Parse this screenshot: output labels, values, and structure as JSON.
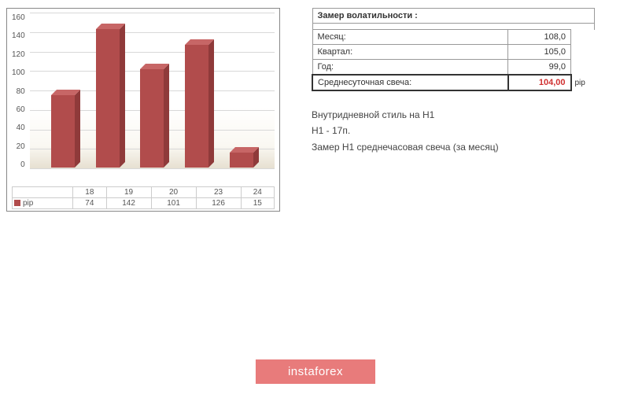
{
  "chart": {
    "type": "bar",
    "categories": [
      "18",
      "19",
      "20",
      "23",
      "24"
    ],
    "series_label": "pip",
    "values": [
      74,
      142,
      101,
      126,
      15
    ],
    "bar_color": "#b14c4c",
    "bar_side_color": "#8f3a3a",
    "bar_top_color": "#c76666",
    "ylim": [
      0,
      160
    ],
    "ytick_step": 20,
    "background_color": "#ffffff",
    "grid_color": "#d8d8d8",
    "floor_gradient_from": "#e6dfd0",
    "floor_gradient_to": "#ffffff",
    "label_fontsize": 10,
    "label_color": "#555555"
  },
  "volatility": {
    "header": "Замер  волатильности  :",
    "rows": [
      {
        "label": "Месяц:",
        "value": "108,0"
      },
      {
        "label": "Квартал:",
        "value": "105,0"
      },
      {
        "label": "Год:",
        "value": "99,0"
      }
    ],
    "summary_label": "Среднесуточная свеча:",
    "summary_value": "104,00",
    "summary_unit": "pip",
    "summary_color": "#d03030",
    "border_color": "#999999",
    "font_size": 11
  },
  "notes": {
    "line1": "Внутридневной стиль на H1",
    "line2": "H1 - 17п.",
    "line3": "Замер H1 среднечасовая свеча (за месяц)"
  },
  "footer": {
    "label": "instaforex",
    "bg_color": "#e87b7b",
    "text_color": "#ffffff"
  }
}
